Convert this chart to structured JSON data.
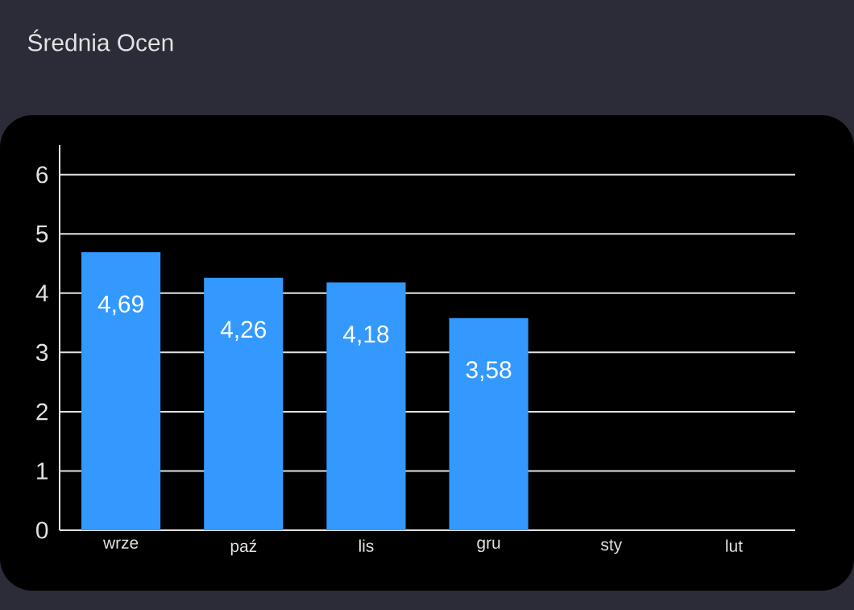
{
  "chart_data": {
    "type": "bar",
    "title": "Średnia Ocen",
    "categories": [
      "wrze",
      "paź",
      "lis",
      "gru",
      "sty",
      "lut"
    ],
    "values": [
      4.69,
      4.26,
      4.18,
      3.58,
      null,
      null
    ],
    "value_labels": [
      "4,69",
      "4,26",
      "4,18",
      "3,58",
      null,
      null
    ],
    "color": "#3399ff",
    "ylim": [
      0,
      6.5
    ],
    "yticks": [
      0,
      1,
      2,
      3,
      4,
      5,
      6
    ],
    "grid": "y"
  }
}
